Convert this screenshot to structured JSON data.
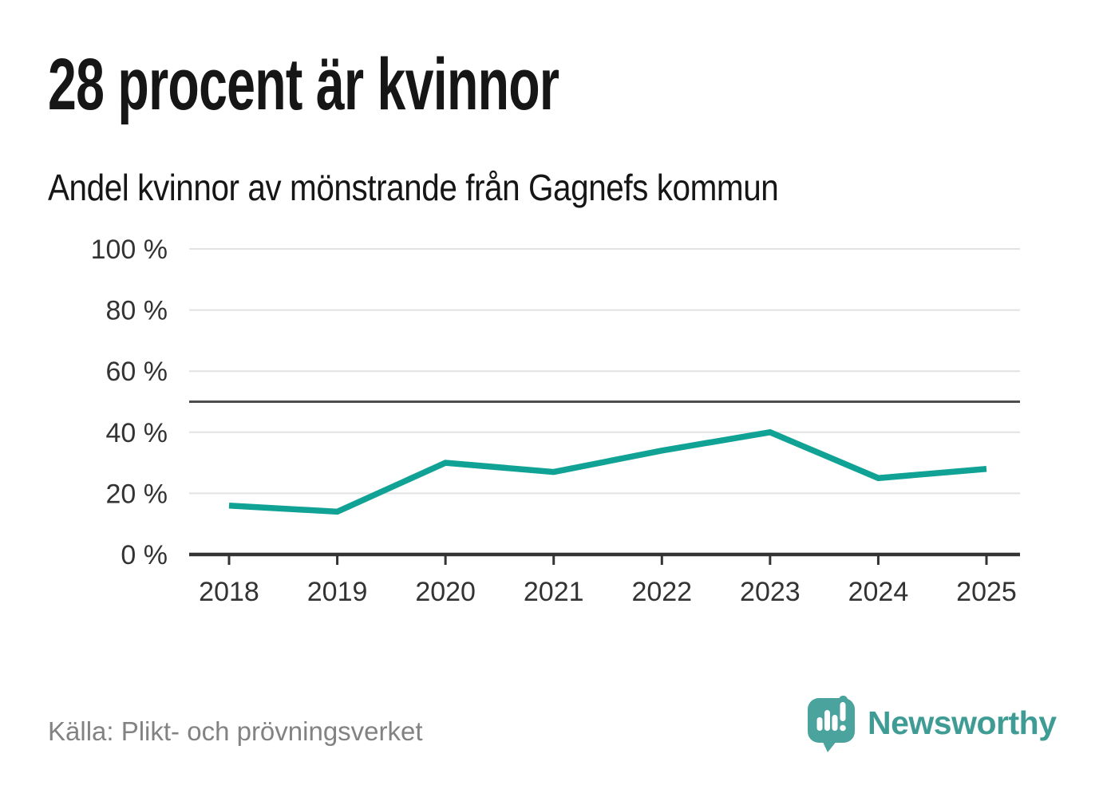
{
  "header": {
    "title": "28 procent är kvinnor",
    "subtitle": "Andel kvinnor av mönstrande från Gagnefs kommun"
  },
  "chart_data": {
    "type": "line",
    "title": "28 procent är kvinnor",
    "subtitle": "Andel kvinnor av mönstrande från Gagnefs kommun",
    "categories": [
      "2018",
      "2019",
      "2020",
      "2021",
      "2022",
      "2023",
      "2024",
      "2025"
    ],
    "series": [
      {
        "name": "Andel kvinnor av mönstrande",
        "values": [
          16,
          14,
          30,
          27,
          34,
          40,
          25,
          28
        ]
      }
    ],
    "ylim": [
      0,
      100
    ],
    "yticks": [
      0,
      20,
      40,
      60,
      80,
      100
    ],
    "ytick_suffix": " %",
    "reference_line_y": 50,
    "grid": true,
    "legend": "none",
    "colors": {
      "line": "#10a294",
      "grid": "#e2e2e2",
      "reference_line": "#4d4d4d",
      "axis": "#333333",
      "tick_label": "#333333"
    }
  },
  "footer": {
    "source": "Källa: Plikt- och prövningsverket",
    "source_color": "#828282",
    "brand": "Newsworthy",
    "brand_color": "#3f9c95",
    "brand_icon_color": "#4aa39c"
  }
}
